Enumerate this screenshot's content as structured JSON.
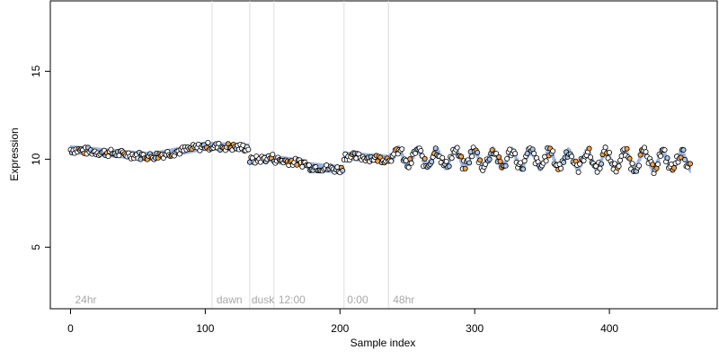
{
  "chart_data": {
    "type": "scatter",
    "xlabel": "Sample index",
    "ylabel": "Expression",
    "xlim": [
      -15,
      480
    ],
    "ylim": [
      1.5,
      19
    ],
    "x_ticks": [
      0,
      100,
      200,
      300,
      400
    ],
    "y_ticks": [
      5,
      10,
      15
    ],
    "grid": false,
    "vlines": [
      105,
      133,
      151,
      203,
      236
    ],
    "annotations": [
      {
        "text": "24hr",
        "x": 2
      },
      {
        "text": "dawn",
        "x": 107
      },
      {
        "text": "dusk",
        "x": 133
      },
      {
        "text": "12:00",
        "x": 153
      },
      {
        "text": "0:00",
        "x": 204
      },
      {
        "text": "48hr",
        "x": 238
      }
    ],
    "series": [
      {
        "color": "#ffffff",
        "role": "points"
      },
      {
        "color": "#f5a142",
        "role": "highlighted points"
      },
      {
        "color": "#a9c7e8",
        "role": "blue points"
      },
      {
        "color": "#8aa3d6",
        "role": "fitted band"
      }
    ],
    "segments": [
      {
        "x": [
          0,
          60
        ],
        "y": [
          10.55,
          10.15
        ]
      },
      {
        "x": [
          60,
          100
        ],
        "y": [
          10.15,
          10.75
        ]
      },
      {
        "x": [
          100,
          132
        ],
        "y": [
          10.75,
          10.65
        ]
      },
      {
        "x": [
          132,
          150
        ],
        "y": [
          9.9,
          10.1
        ]
      },
      {
        "x": [
          150,
          175
        ],
        "y": [
          10.0,
          9.75
        ]
      },
      {
        "x": [
          175,
          202
        ],
        "y": [
          9.6,
          9.4
        ]
      },
      {
        "x": [
          202,
          236
        ],
        "y": [
          10.2,
          10.0
        ]
      },
      {
        "x": [
          236,
          460
        ],
        "y": [
          10.1,
          9.9
        ]
      }
    ],
    "noise": 0.22,
    "n_points": 461,
    "wave": {
      "start": 240,
      "period": 14,
      "amplitude": 0.45
    }
  }
}
